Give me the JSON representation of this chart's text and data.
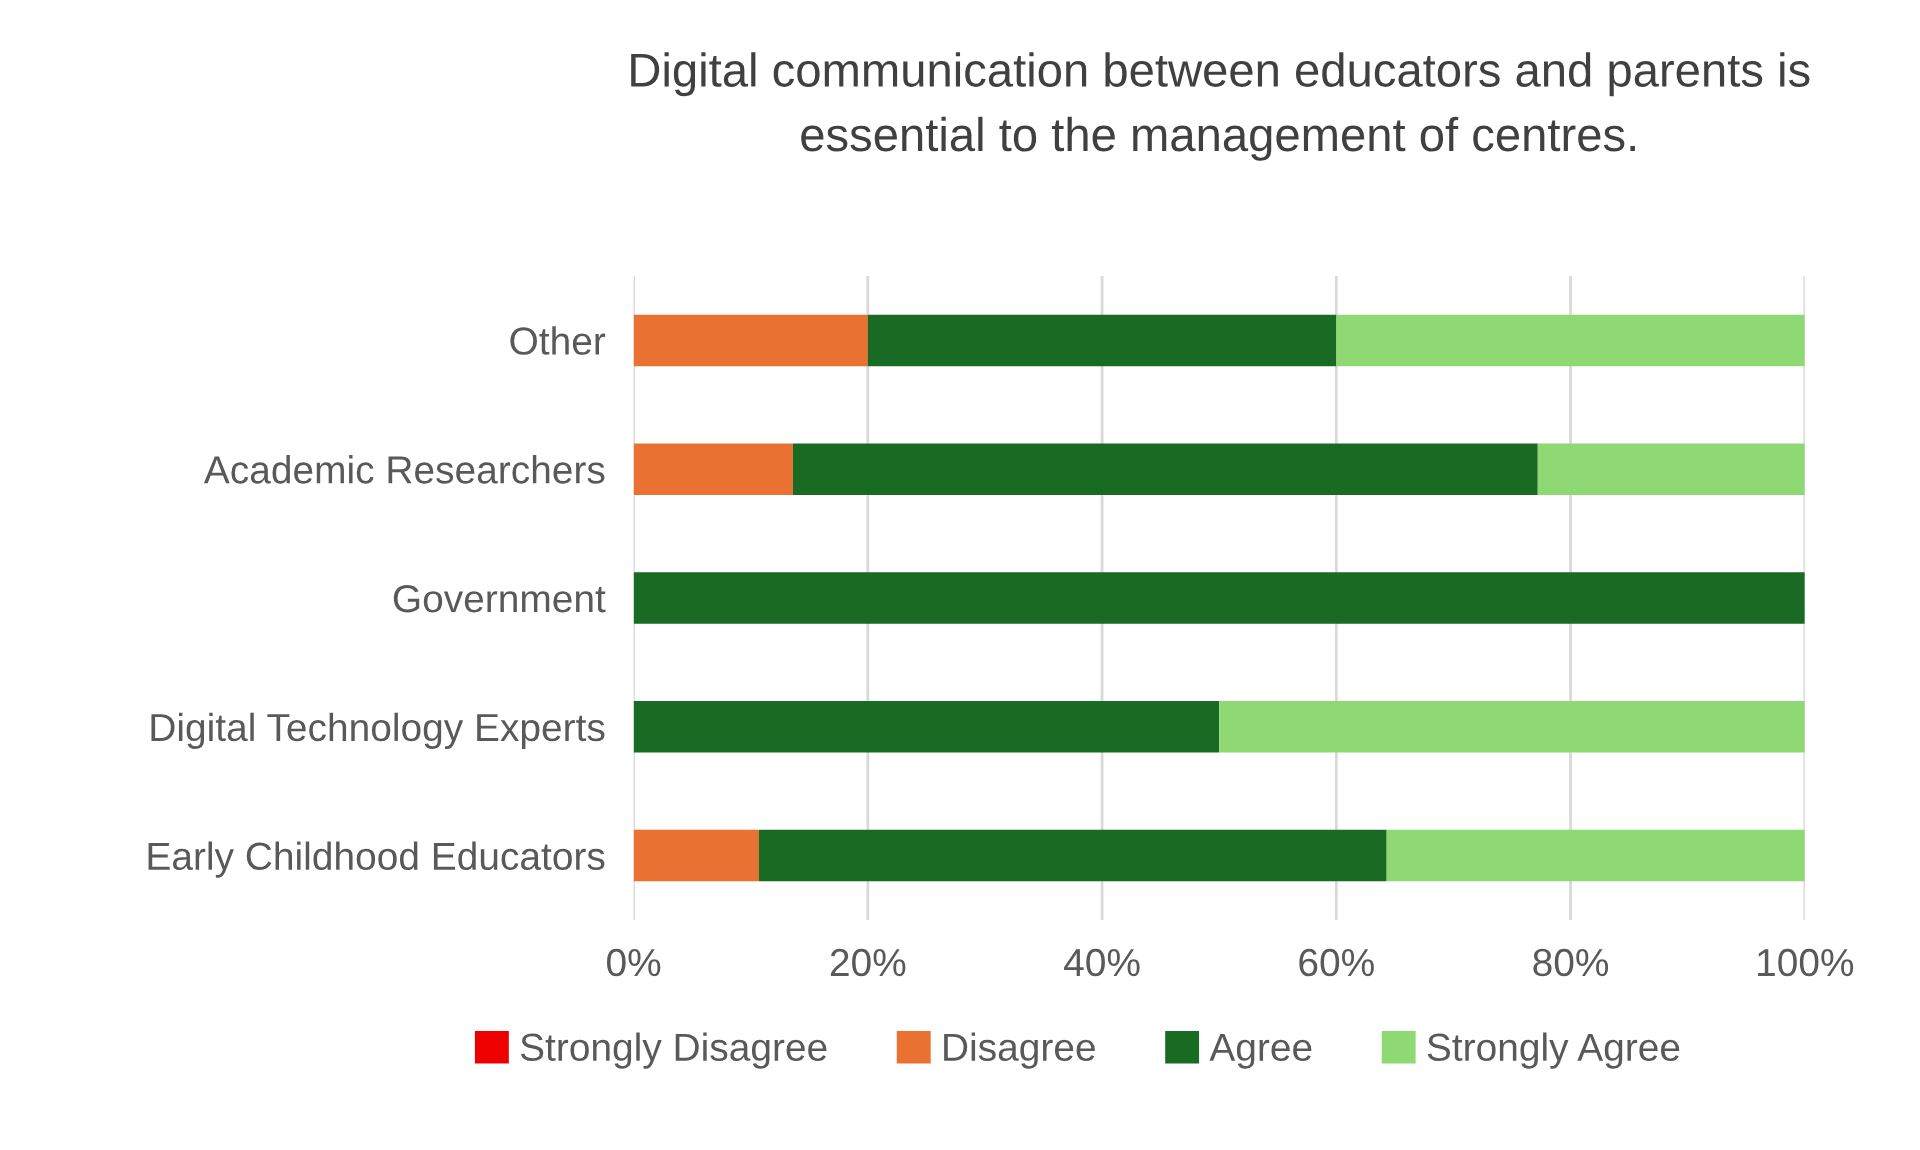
{
  "chart_data": {
    "type": "bar",
    "orientation": "horizontal",
    "stacked": true,
    "title": "Digital communication between educators and parents is\nessential to the management of centres.",
    "categories": [
      "Other",
      "Academic Researchers",
      "Government",
      "Digital Technology Experts",
      "Early Childhood Educators"
    ],
    "series": [
      {
        "name": "Strongly Disagree",
        "color": "#ee0000",
        "values": [
          0,
          0,
          0,
          0,
          0
        ]
      },
      {
        "name": "Disagree",
        "color": "#e97132",
        "values": [
          20,
          13.6,
          0,
          0,
          10.7
        ]
      },
      {
        "name": "Agree",
        "color": "#196b24",
        "values": [
          40,
          63.6,
          100,
          50,
          53.6
        ]
      },
      {
        "name": "Strongly Agree",
        "color": "#8ed973",
        "values": [
          40,
          22.8,
          0,
          50,
          35.7
        ]
      }
    ],
    "xlim": [
      0,
      100
    ],
    "xticks": [
      {
        "value": 0,
        "label": "0%"
      },
      {
        "value": 20,
        "label": "20%"
      },
      {
        "value": 40,
        "label": "40%"
      },
      {
        "value": 60,
        "label": "60%"
      },
      {
        "value": 80,
        "label": "80%"
      },
      {
        "value": 100,
        "label": "100%"
      }
    ],
    "grid": "x",
    "legend": "bottom"
  }
}
